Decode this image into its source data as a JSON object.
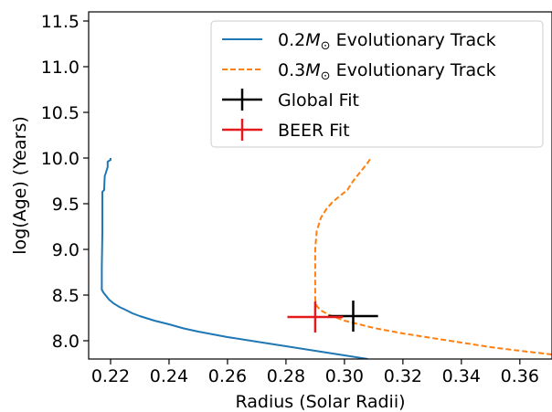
{
  "chart_data": {
    "type": "line",
    "xlabel": "Radius (Solar Radii)",
    "ylabel": "log(Age) (Years)",
    "xlim": [
      0.2125,
      0.371
    ],
    "ylim": [
      7.8,
      11.6
    ],
    "xticks": [
      0.22,
      0.24,
      0.26,
      0.28,
      0.3,
      0.32,
      0.34,
      0.36
    ],
    "xtick_labels": [
      "0.22",
      "0.24",
      "0.26",
      "0.28",
      "0.30",
      "0.32",
      "0.34",
      "0.36"
    ],
    "yticks": [
      8.0,
      8.5,
      9.0,
      9.5,
      10.0,
      10.5,
      11.0,
      11.5
    ],
    "ytick_labels": [
      "8.0",
      "8.5",
      "9.0",
      "9.5",
      "10.0",
      "10.5",
      "11.0",
      "11.5"
    ],
    "grid": false,
    "legend_position": "top-right",
    "series": [
      {
        "name": "0.2M☉ Evolutionary Track",
        "legend_prefix": "0.2",
        "legend_symbol": "M",
        "legend_sub": "⊙",
        "legend_suffix": " Evolutionary Track",
        "color": "#1f77b4",
        "linestyle": "solid",
        "x": [
          0.308,
          0.3,
          0.29,
          0.28,
          0.27,
          0.26,
          0.25,
          0.245,
          0.24,
          0.235,
          0.23,
          0.2275,
          0.225,
          0.223,
          0.221,
          0.2195,
          0.2185,
          0.2175,
          0.217,
          0.217,
          0.2172,
          0.2172,
          0.2178,
          0.218,
          0.2185,
          0.219,
          0.219,
          0.22,
          0.22
        ],
        "y": [
          7.8,
          7.84,
          7.89,
          7.94,
          7.99,
          8.04,
          8.1,
          8.135,
          8.18,
          8.22,
          8.27,
          8.3,
          8.34,
          8.37,
          8.41,
          8.45,
          8.49,
          8.53,
          8.56,
          8.8,
          9.2,
          9.63,
          9.65,
          9.8,
          9.85,
          9.9,
          9.96,
          9.98,
          10.0
        ]
      },
      {
        "name": "0.3M☉ Evolutionary Track",
        "legend_prefix": "0.3",
        "legend_symbol": "M",
        "legend_sub": "⊙",
        "legend_suffix": " Evolutionary Track",
        "color": "#ff7f0e",
        "linestyle": "dashed",
        "x": [
          0.371,
          0.36,
          0.35,
          0.34,
          0.33,
          0.32,
          0.31,
          0.3,
          0.295,
          0.292,
          0.2905,
          0.29,
          0.29,
          0.2905,
          0.292,
          0.294,
          0.296,
          0.299,
          0.301,
          0.303,
          0.305,
          0.308,
          0.309
        ],
        "y": [
          7.85,
          7.89,
          7.93,
          7.98,
          8.03,
          8.08,
          8.14,
          8.22,
          8.28,
          8.33,
          8.38,
          8.45,
          9.0,
          9.2,
          9.35,
          9.45,
          9.52,
          9.6,
          9.65,
          9.75,
          9.83,
          9.95,
          10.0
        ]
      }
    ],
    "points": [
      {
        "name": "Global Fit",
        "color": "#000000",
        "x": 0.303,
        "y": 8.27,
        "xerr": 0.0085,
        "yerr": 0.17
      },
      {
        "name": "BEER Fit",
        "color": "#e41a1c",
        "x": 0.29,
        "y": 8.26,
        "xerr": 0.0095,
        "yerr": 0.17
      }
    ]
  }
}
